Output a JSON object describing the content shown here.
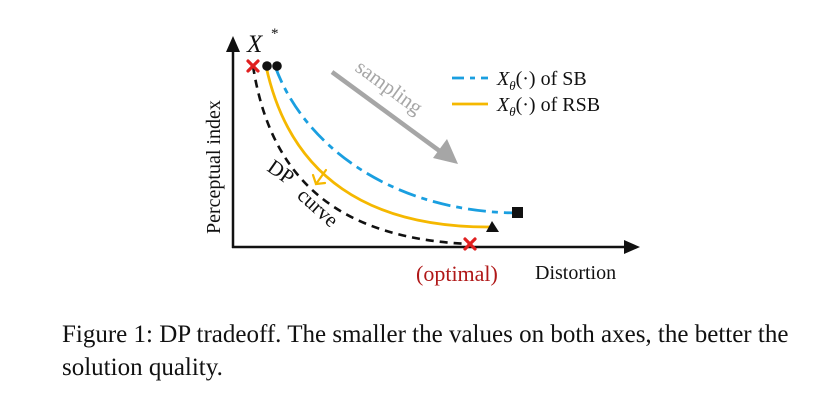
{
  "diagram": {
    "y_axis_label": "Perceptual index",
    "x_axis_label": "Distortion",
    "optimal_label": "(optimal)",
    "xstar_label": "X",
    "xstar_superscript": "*",
    "dp_curve_label_1": "DP",
    "dp_curve_label_2": "curve",
    "sampling_label": "sampling",
    "legend": {
      "sb": {
        "var": "X",
        "sub": "θ",
        "rest": "(·) of SB",
        "color": "#1a9fe0"
      },
      "rsb": {
        "var": "X",
        "sub": "θ",
        "rest": "(·) of RSB",
        "color": "#f5b800"
      }
    },
    "colors": {
      "dp_curve": "#111111",
      "optimal_marker": "#e02020",
      "optimal_text": "#b01818",
      "sampling_arrow": "#a6a6a6",
      "improve_arrow": "#f5b800"
    }
  },
  "caption": "Figure 1: DP tradeoff. The smaller the values on both axes, the better the solution quality."
}
